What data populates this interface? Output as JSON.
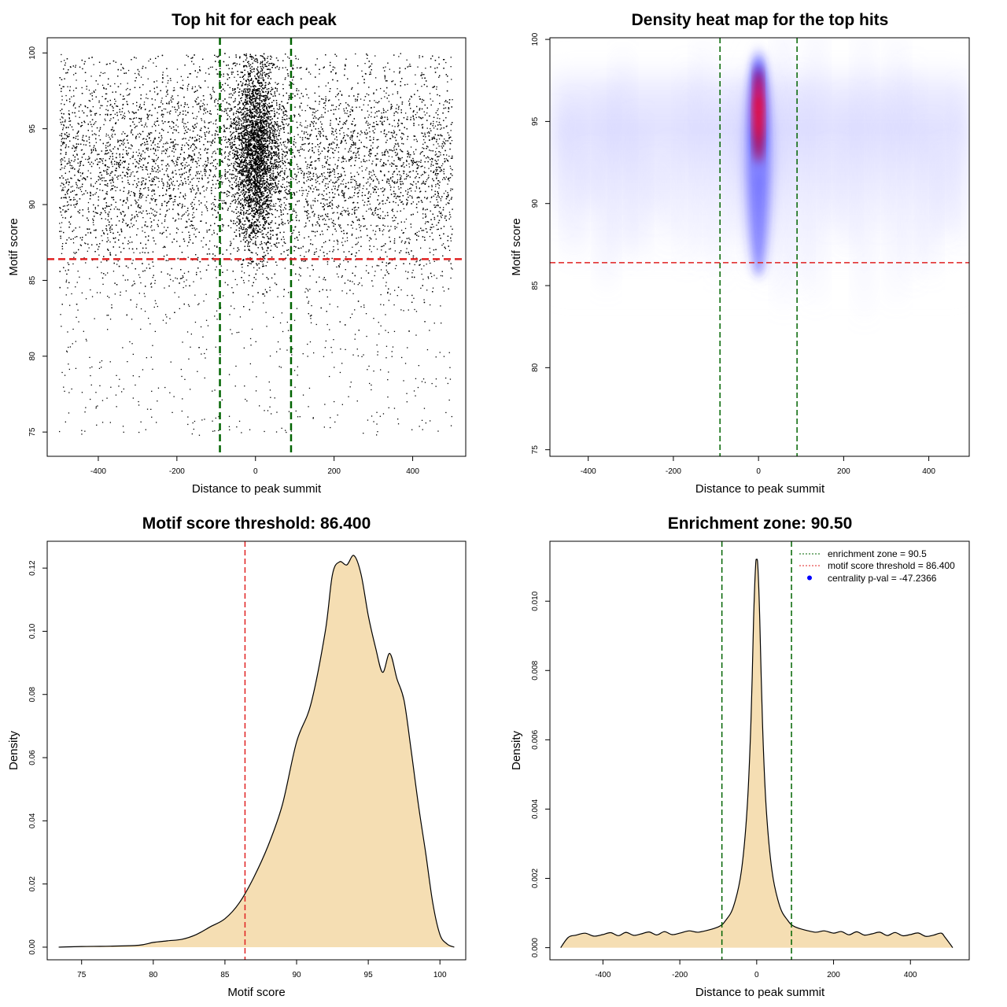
{
  "chart_data": [
    {
      "id": "scatter",
      "type": "scatter",
      "title": "Top hit for each peak",
      "xlabel": "Distance to peak summit",
      "ylabel": "Motif score",
      "xlim": [
        -530,
        535
      ],
      "ylim": [
        73.4,
        101.0
      ],
      "xticks": [
        -400,
        -200,
        0,
        200,
        400
      ],
      "yticks": [
        75,
        80,
        85,
        90,
        95,
        100
      ],
      "vlines": [
        -90.5,
        90.5
      ],
      "hline": 86.4,
      "vline_color": "#006400",
      "hline_color": "#e02020",
      "point_color": "#000000",
      "point_groups": [
        {
          "x_range": [
            -500,
            500
          ],
          "x_spread": "uniform",
          "y_mean": 92.5,
          "y_sd": 3.5,
          "y_range": [
            80,
            100
          ],
          "n": 11000
        },
        {
          "x_center": 0,
          "x_sd": 28,
          "x_range": [
            -120,
            120
          ],
          "y_mean": 93.5,
          "y_sd": 3.0,
          "y_range": [
            82,
            100
          ],
          "n": 8000
        },
        {
          "x_range": [
            -500,
            500
          ],
          "x_spread": "uniform",
          "y_range": [
            74.8,
            86.5
          ],
          "y_spread": "uniform",
          "n": 520
        }
      ]
    },
    {
      "id": "heatmap",
      "type": "heatmap",
      "title": "Density heat map for the top hits",
      "xlabel": "Distance to peak summit",
      "ylabel": "Motif score",
      "xlim": [
        -490,
        495
      ],
      "ylim": [
        74.6,
        100.1
      ],
      "xticks": [
        -400,
        -200,
        0,
        200,
        400
      ],
      "yticks": [
        75,
        80,
        85,
        90,
        95,
        100
      ],
      "vlines": [
        -90.5,
        90.5
      ],
      "hline": 86.4,
      "colors": [
        "#ffffff",
        "#0000ff",
        "#ff0000"
      ],
      "hotspot": {
        "x": 0,
        "x_sd": 10,
        "y_peak": 94.5,
        "y_range": [
          86,
          99.5
        ]
      },
      "background": {
        "x_range": [
          -490,
          495
        ],
        "y_range": [
          84,
          99
        ],
        "level": "faint"
      }
    },
    {
      "id": "score_density",
      "type": "area",
      "title": "Motif score threshold: 86.400",
      "xlabel": "Motif score",
      "ylabel": "Density",
      "xlim": [
        72.6,
        101.8
      ],
      "ylim": [
        -0.004,
        0.1285
      ],
      "xticks": [
        75,
        80,
        85,
        90,
        95,
        100
      ],
      "yticks": [
        0.0,
        0.02,
        0.04,
        0.06,
        0.08,
        0.1,
        0.12
      ],
      "ytick_labels": [
        "0.00",
        "0.02",
        "0.04",
        "0.06",
        "0.08",
        "0.10",
        "0.12"
      ],
      "vline": 86.4,
      "fill": "#f5deb3",
      "x": [
        73.4,
        75,
        77,
        79,
        80,
        81,
        82,
        83,
        84,
        85,
        86,
        87,
        88,
        89,
        90,
        91,
        92,
        92.5,
        93,
        93.5,
        94,
        94.5,
        95,
        95.5,
        96,
        96.5,
        97,
        97.5,
        98,
        98.5,
        99,
        99.5,
        100,
        100.5,
        101
      ],
      "y": [
        0.0,
        0.0002,
        0.0003,
        0.0006,
        0.0015,
        0.002,
        0.0025,
        0.004,
        0.0065,
        0.009,
        0.014,
        0.022,
        0.032,
        0.045,
        0.065,
        0.077,
        0.1,
        0.118,
        0.122,
        0.121,
        0.124,
        0.118,
        0.105,
        0.095,
        0.087,
        0.093,
        0.085,
        0.078,
        0.062,
        0.045,
        0.03,
        0.014,
        0.004,
        0.001,
        0.0
      ]
    },
    {
      "id": "distance_density",
      "type": "area",
      "title": "Enrichment zone: 90.50",
      "xlabel": "Distance to peak summit",
      "ylabel": "Density",
      "xlim": [
        -538,
        553
      ],
      "ylim": [
        -0.00035,
        0.01173
      ],
      "xticks": [
        -400,
        -200,
        0,
        200,
        400
      ],
      "yticks": [
        0.0,
        0.002,
        0.004,
        0.006,
        0.008,
        0.01
      ],
      "ytick_labels": [
        "0.000",
        "0.002",
        "0.004",
        "0.006",
        "0.008",
        "0.010"
      ],
      "vlines": [
        -90.5,
        90.5
      ],
      "fill": "#f5deb3",
      "x": [
        -510,
        -490,
        -470,
        -400,
        -300,
        -200,
        -150,
        -100,
        -80,
        -60,
        -40,
        -25,
        -15,
        -8,
        -3,
        0,
        3,
        8,
        15,
        25,
        40,
        60,
        80,
        100,
        150,
        200,
        300,
        400,
        460,
        480,
        490,
        510
      ],
      "y": [
        0.0,
        0.0003,
        0.00036,
        0.00038,
        0.0004,
        0.00042,
        0.00045,
        0.0006,
        0.0008,
        0.0012,
        0.0022,
        0.004,
        0.0065,
        0.0095,
        0.011,
        0.0112,
        0.011,
        0.0095,
        0.0065,
        0.004,
        0.0022,
        0.0012,
        0.0008,
        0.0006,
        0.00045,
        0.00042,
        0.0004,
        0.00038,
        0.00036,
        0.00042,
        0.0003,
        0.0
      ],
      "legend": {
        "position": "top-right",
        "items": [
          {
            "label": "enrichment zone = 90.5",
            "color": "#006400",
            "style": "dotted-line"
          },
          {
            "label": "motif score threshold = 86.400",
            "color": "#e02020",
            "style": "dotted-line"
          },
          {
            "label": "centrality p-val = -47.2366",
            "color": "#0000ff",
            "style": "point"
          }
        ]
      }
    }
  ]
}
